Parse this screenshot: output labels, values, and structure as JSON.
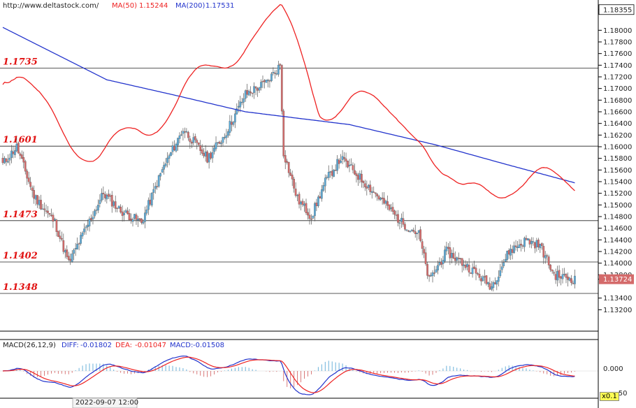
{
  "header": {
    "site": "http://www.deltastock.com/",
    "ma50_label": "MA(50)",
    "ma50_value": "1.15244",
    "ma200_label": "MA(200)",
    "ma200_value": "1.17531"
  },
  "macd_header": {
    "params": "MACD(26,12,9)",
    "diff_label": "DIFF:",
    "diff_value": "-0.01802",
    "dea_label": "DEA:",
    "dea_value": "-0.01047",
    "macd_label": "MACD:",
    "macd_value": "-0.01508"
  },
  "date_label": "2022-09-07 12:00",
  "zoom_label": "x0.1",
  "colors": {
    "bull": "#5aa9d6",
    "bear": "#d46a6a",
    "ma50": "#ee2222",
    "ma200": "#2233cc",
    "level_text": "#e11111"
  },
  "chart_data": [
    {
      "type": "candlestick",
      "ylim": [
        1.13,
        1.184
      ],
      "y_ticks": [
        "1.18355",
        "1.18000",
        "1.17800",
        "1.17600",
        "1.17400",
        "1.17200",
        "1.17000",
        "1.16800",
        "1.16600",
        "1.16400",
        "1.16200",
        "1.16000",
        "1.15800",
        "1.15600",
        "1.15400",
        "1.15200",
        "1.15000",
        "1.14800",
        "1.14600",
        "1.14400",
        "1.14200",
        "1.14000",
        "1.13800",
        "1.13724",
        "1.13400",
        "1.13200"
      ],
      "last_price": "1.13724",
      "levels": [
        {
          "value": 1.1735,
          "label": "1.1735"
        },
        {
          "value": 1.1601,
          "label": "1.1601"
        },
        {
          "value": 1.1473,
          "label": "1.1473"
        },
        {
          "value": 1.1402,
          "label": "1.1402"
        },
        {
          "value": 1.1348,
          "label": "1.1348"
        }
      ],
      "ma50_last": 1.15244,
      "ma200_last": 1.17531,
      "anchors": [
        [
          0,
          1.157
        ],
        [
          8,
          1.16
        ],
        [
          18,
          1.1515
        ],
        [
          30,
          1.147
        ],
        [
          38,
          1.14
        ],
        [
          48,
          1.146
        ],
        [
          58,
          1.152
        ],
        [
          68,
          1.149
        ],
        [
          80,
          1.147
        ],
        [
          92,
          1.156
        ],
        [
          104,
          1.163
        ],
        [
          118,
          1.158
        ],
        [
          128,
          1.162
        ],
        [
          140,
          1.169
        ],
        [
          152,
          1.171
        ],
        [
          160,
          1.174
        ],
        [
          162,
          1.159
        ],
        [
          170,
          1.151
        ],
        [
          178,
          1.148
        ],
        [
          186,
          1.154
        ],
        [
          195,
          1.158
        ],
        [
          205,
          1.155
        ],
        [
          218,
          1.151
        ],
        [
          230,
          1.147
        ],
        [
          240,
          1.145
        ],
        [
          246,
          1.137
        ],
        [
          256,
          1.142
        ],
        [
          270,
          1.139
        ],
        [
          282,
          1.136
        ],
        [
          292,
          1.142
        ],
        [
          302,
          1.144
        ],
        [
          310,
          1.143
        ],
        [
          318,
          1.138
        ],
        [
          330,
          1.1372
        ]
      ]
    },
    {
      "type": "macd",
      "params": "MACD(26,12,9)",
      "diff": -0.01802,
      "dea": -0.01047,
      "macd": -0.01508,
      "y_ticks": [
        "0.000",
        "-.50"
      ]
    }
  ]
}
